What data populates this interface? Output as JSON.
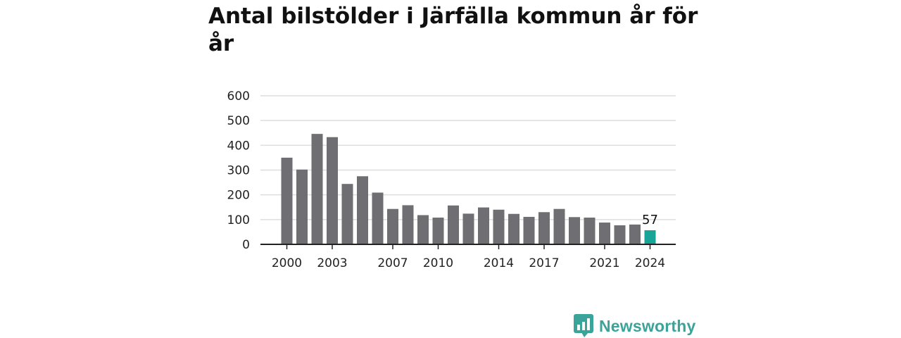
{
  "chart_data": {
    "type": "bar",
    "title": "Antal bilstölder i Järfälla kommun år för år",
    "xlabel": "",
    "ylabel": "",
    "x": [
      2000,
      2001,
      2002,
      2003,
      2004,
      2005,
      2006,
      2007,
      2008,
      2009,
      2010,
      2011,
      2012,
      2013,
      2014,
      2015,
      2016,
      2017,
      2018,
      2019,
      2020,
      2021,
      2022,
      2023,
      2024
    ],
    "values": [
      350,
      302,
      446,
      433,
      244,
      275,
      209,
      143,
      158,
      118,
      108,
      157,
      124,
      149,
      140,
      123,
      111,
      130,
      143,
      110,
      108,
      88,
      77,
      80,
      57
    ],
    "x_ticks": [
      "2000",
      "2003",
      "2007",
      "2010",
      "2014",
      "2017",
      "2021",
      "2024"
    ],
    "y_ticks": [
      "0",
      "100",
      "200",
      "300",
      "400",
      "500",
      "600"
    ],
    "ylim": [
      0,
      600
    ],
    "grid": true,
    "highlight": {
      "x": 2024,
      "label": "57"
    },
    "colors": {
      "bar": "#6f6e73",
      "highlight": "#18a497",
      "grid": "#dddddd",
      "axis": "#222222"
    }
  },
  "brand": {
    "name": "Newsworthy",
    "icon": "bar-chart-speech-bubble-icon",
    "color": "#3aa39a"
  }
}
